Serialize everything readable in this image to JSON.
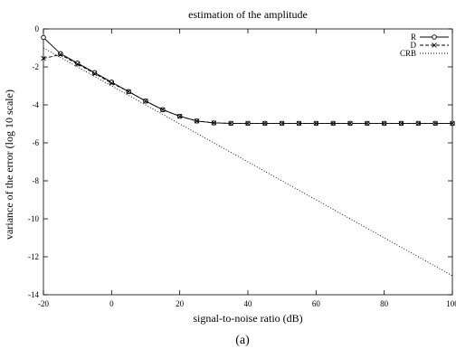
{
  "chart_data": {
    "type": "line",
    "title": "estimation of the amplitude",
    "xlabel": "signal-to-noise ratio (dB)",
    "ylabel": "variance of the error (log 10 scale)",
    "caption": "(a)",
    "xlim": [
      -20,
      100
    ],
    "ylim": [
      -14,
      0
    ],
    "x_ticks": [
      "-20",
      "0",
      "20",
      "40",
      "60",
      "80",
      "100"
    ],
    "y_ticks": [
      "0",
      "-2",
      "-4",
      "-6",
      "-8",
      "-10",
      "-12",
      "-14"
    ],
    "grid": false,
    "legend_position": "top-right",
    "series": [
      {
        "name": "R",
        "line": "solid",
        "marker": "circle",
        "x": [
          -20,
          -15,
          -10,
          -5,
          0,
          5,
          10,
          15,
          20,
          25,
          30,
          35,
          40,
          45,
          50,
          55,
          60,
          65,
          70,
          75,
          80,
          85,
          90,
          95,
          100
        ],
        "y": [
          -0.45,
          -1.3,
          -1.8,
          -2.3,
          -2.8,
          -3.3,
          -3.8,
          -4.25,
          -4.6,
          -4.85,
          -4.95,
          -4.97,
          -4.97,
          -4.97,
          -4.97,
          -4.97,
          -4.97,
          -4.97,
          -4.97,
          -4.97,
          -4.97,
          -4.97,
          -4.97,
          -4.97,
          -4.97
        ]
      },
      {
        "name": "D",
        "line": "dashed",
        "marker": "cross",
        "x": [
          -20,
          -15,
          -10,
          -5,
          0,
          5,
          10,
          15,
          20,
          25,
          30,
          35,
          40,
          45,
          50,
          55,
          60,
          65,
          70,
          75,
          80,
          85,
          90,
          95,
          100
        ],
        "y": [
          -1.55,
          -1.35,
          -1.85,
          -2.35,
          -2.85,
          -3.3,
          -3.8,
          -4.25,
          -4.6,
          -4.85,
          -4.95,
          -4.97,
          -4.97,
          -4.97,
          -4.97,
          -4.97,
          -4.97,
          -4.97,
          -4.97,
          -4.97,
          -4.97,
          -4.97,
          -4.97,
          -4.97,
          -4.97
        ]
      },
      {
        "name": "CRB",
        "line": "dotted",
        "marker": "none",
        "x": [
          -20,
          100
        ],
        "y": [
          -1.0,
          -13.0
        ]
      }
    ]
  }
}
